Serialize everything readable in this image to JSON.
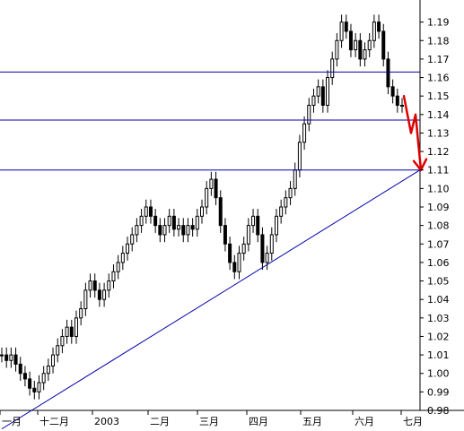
{
  "chart_data": {
    "type": "candlestick",
    "title": "",
    "xlabel": "",
    "ylabel": "",
    "ylim": [
      0.98,
      1.2
    ],
    "y_ticks": [
      0.98,
      0.99,
      1.0,
      1.01,
      1.02,
      1.03,
      1.04,
      1.05,
      1.06,
      1.07,
      1.08,
      1.09,
      1.1,
      1.11,
      1.12,
      1.13,
      1.14,
      1.15,
      1.16,
      1.17,
      1.18,
      1.19
    ],
    "y_axis_side": "right",
    "x_tick_labels": [
      "一月",
      "十二月",
      "2003",
      "二月",
      "三月",
      "四月",
      "五月",
      "六月",
      "七月"
    ],
    "series": [
      {
        "values": [
          1.01,
          1.007,
          1.01,
          1.005,
          1.0,
          0.997,
          0.992,
          0.99,
          0.995,
          1.0,
          1.004,
          1.01,
          1.015,
          1.02,
          1.025,
          1.02,
          1.03,
          1.035,
          1.045,
          1.05,
          1.045,
          1.04,
          1.045,
          1.05,
          1.055,
          1.06,
          1.065,
          1.07,
          1.075,
          1.08,
          1.085,
          1.09,
          1.085,
          1.08,
          1.075,
          1.08,
          1.085,
          1.078,
          1.08,
          1.075,
          1.08,
          1.078,
          1.085,
          1.09,
          1.1,
          1.105,
          1.095,
          1.08,
          1.07,
          1.06,
          1.055,
          1.065,
          1.07,
          1.08,
          1.085,
          1.075,
          1.06,
          1.065,
          1.075,
          1.085,
          1.09,
          1.095,
          1.1,
          1.11,
          1.125,
          1.135,
          1.145,
          1.15,
          1.155,
          1.145,
          1.16,
          1.17,
          1.18,
          1.19,
          1.185,
          1.175,
          1.18,
          1.17,
          1.175,
          1.18,
          1.19,
          1.185,
          1.17,
          1.155,
          1.15,
          1.145,
          1.145
        ]
      }
    ],
    "horizontal_lines": [
      1.163,
      1.137,
      1.11
    ],
    "trendline": [
      {
        "x": 0,
        "y": 0.97
      },
      {
        "x": 100,
        "y": 1.11
      }
    ],
    "arrow_path": [
      1.15,
      1.13,
      1.14,
      1.11
    ],
    "colors": {
      "candles": "#000000",
      "lines": "#0000aa",
      "arrow": "#dd0000",
      "grid": "#000000"
    },
    "grid": false,
    "legend": "none"
  }
}
